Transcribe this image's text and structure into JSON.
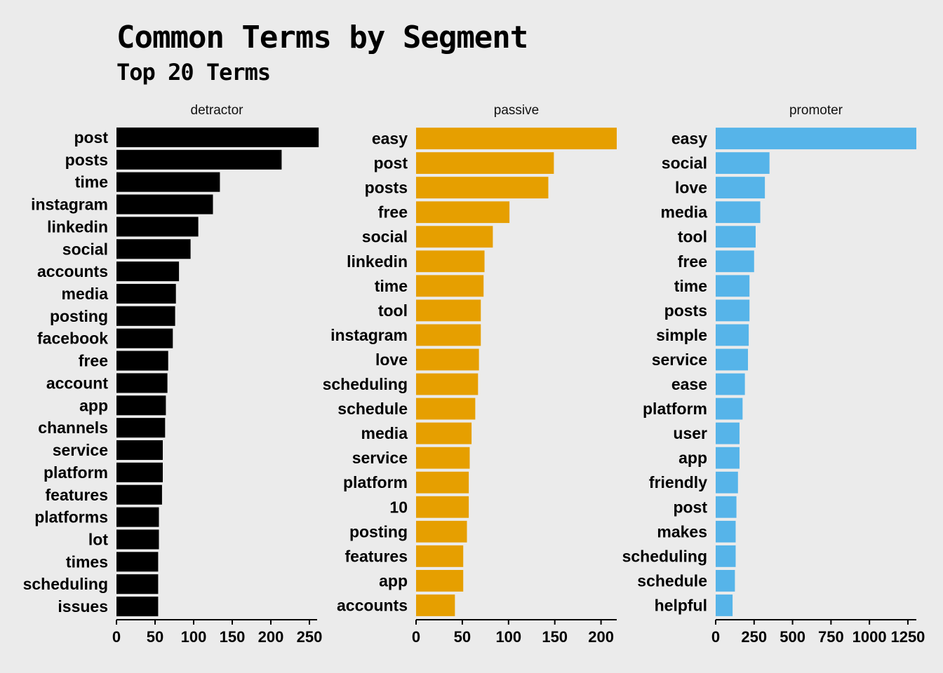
{
  "title": "Common Terms by Segment",
  "subtitle": "Top 20 Terms",
  "chart_data": [
    {
      "type": "bar",
      "orientation": "horizontal",
      "panel": "detractor",
      "color": "#000000",
      "xlim": [
        0,
        260
      ],
      "xticks": [
        0,
        50,
        100,
        150,
        200,
        250
      ],
      "categories": [
        "post",
        "posts",
        "time",
        "instagram",
        "linkedin",
        "social",
        "accounts",
        "media",
        "posting",
        "facebook",
        "free",
        "account",
        "app",
        "channels",
        "service",
        "platform",
        "features",
        "platforms",
        "lot",
        "times",
        "scheduling",
        "issues"
      ],
      "values": [
        262,
        214,
        134,
        125,
        106,
        96,
        81,
        77,
        76,
        73,
        67,
        66,
        64,
        63,
        60,
        60,
        59,
        55,
        55,
        54,
        54,
        54
      ]
    },
    {
      "type": "bar",
      "orientation": "horizontal",
      "panel": "passive",
      "color": "#e69f00",
      "xlim": [
        0,
        217
      ],
      "xticks": [
        0,
        50,
        100,
        150,
        200
      ],
      "categories": [
        "easy",
        "post",
        "posts",
        "free",
        "social",
        "linkedin",
        "time",
        "tool",
        "instagram",
        "love",
        "scheduling",
        "schedule",
        "media",
        "service",
        "platform",
        "10",
        "posting",
        "features",
        "app",
        "accounts"
      ],
      "values": [
        217,
        149,
        143,
        101,
        83,
        74,
        73,
        70,
        70,
        68,
        67,
        64,
        60,
        58,
        57,
        57,
        55,
        51,
        51,
        42
      ]
    },
    {
      "type": "bar",
      "orientation": "horizontal",
      "panel": "promoter",
      "color": "#56b4e9",
      "xlim": [
        0,
        1305
      ],
      "xticks": [
        0,
        250,
        500,
        750,
        1000,
        1250
      ],
      "categories": [
        "easy",
        "social",
        "love",
        "media",
        "tool",
        "free",
        "time",
        "posts",
        "simple",
        "service",
        "ease",
        "platform",
        "user",
        "app",
        "friendly",
        "post",
        "makes",
        "scheduling",
        "schedule",
        "helpful"
      ],
      "values": [
        1305,
        350,
        320,
        290,
        260,
        250,
        220,
        220,
        215,
        210,
        190,
        175,
        155,
        155,
        145,
        135,
        130,
        130,
        125,
        110
      ]
    }
  ]
}
